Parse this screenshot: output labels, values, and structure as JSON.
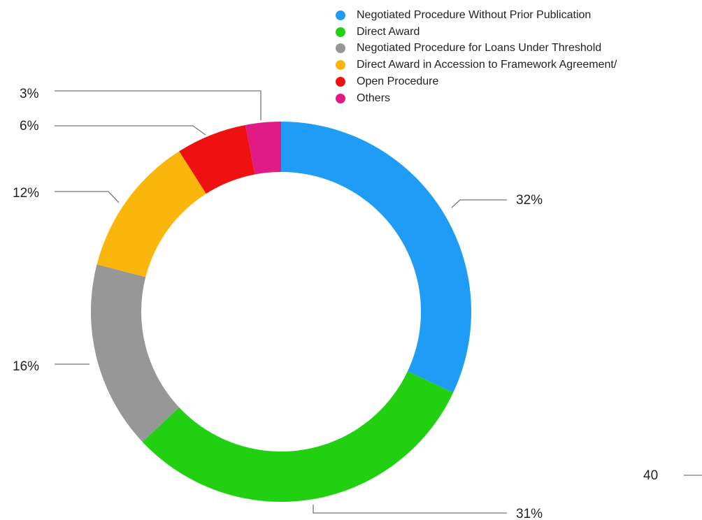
{
  "chart_data": {
    "type": "pie",
    "donut": true,
    "title": "",
    "categories": [
      "Negotiated Procedure Without Prior Publication",
      "Direct Award",
      "Negotiated Procedure for Loans Under Threshold",
      "Direct Award in Accession to Framework Agreement/",
      "Open Procedure",
      "Others"
    ],
    "values": [
      32,
      31,
      16,
      12,
      6,
      3
    ],
    "value_labels": [
      "32%",
      "31%",
      "16%",
      "12%",
      "6%",
      "3%"
    ],
    "colors": [
      "#1f9cf5",
      "#22d012",
      "#979797",
      "#fbb60c",
      "#ef1111",
      "#e01b84"
    ],
    "legend_position": "top-right",
    "extra_label": "40"
  }
}
